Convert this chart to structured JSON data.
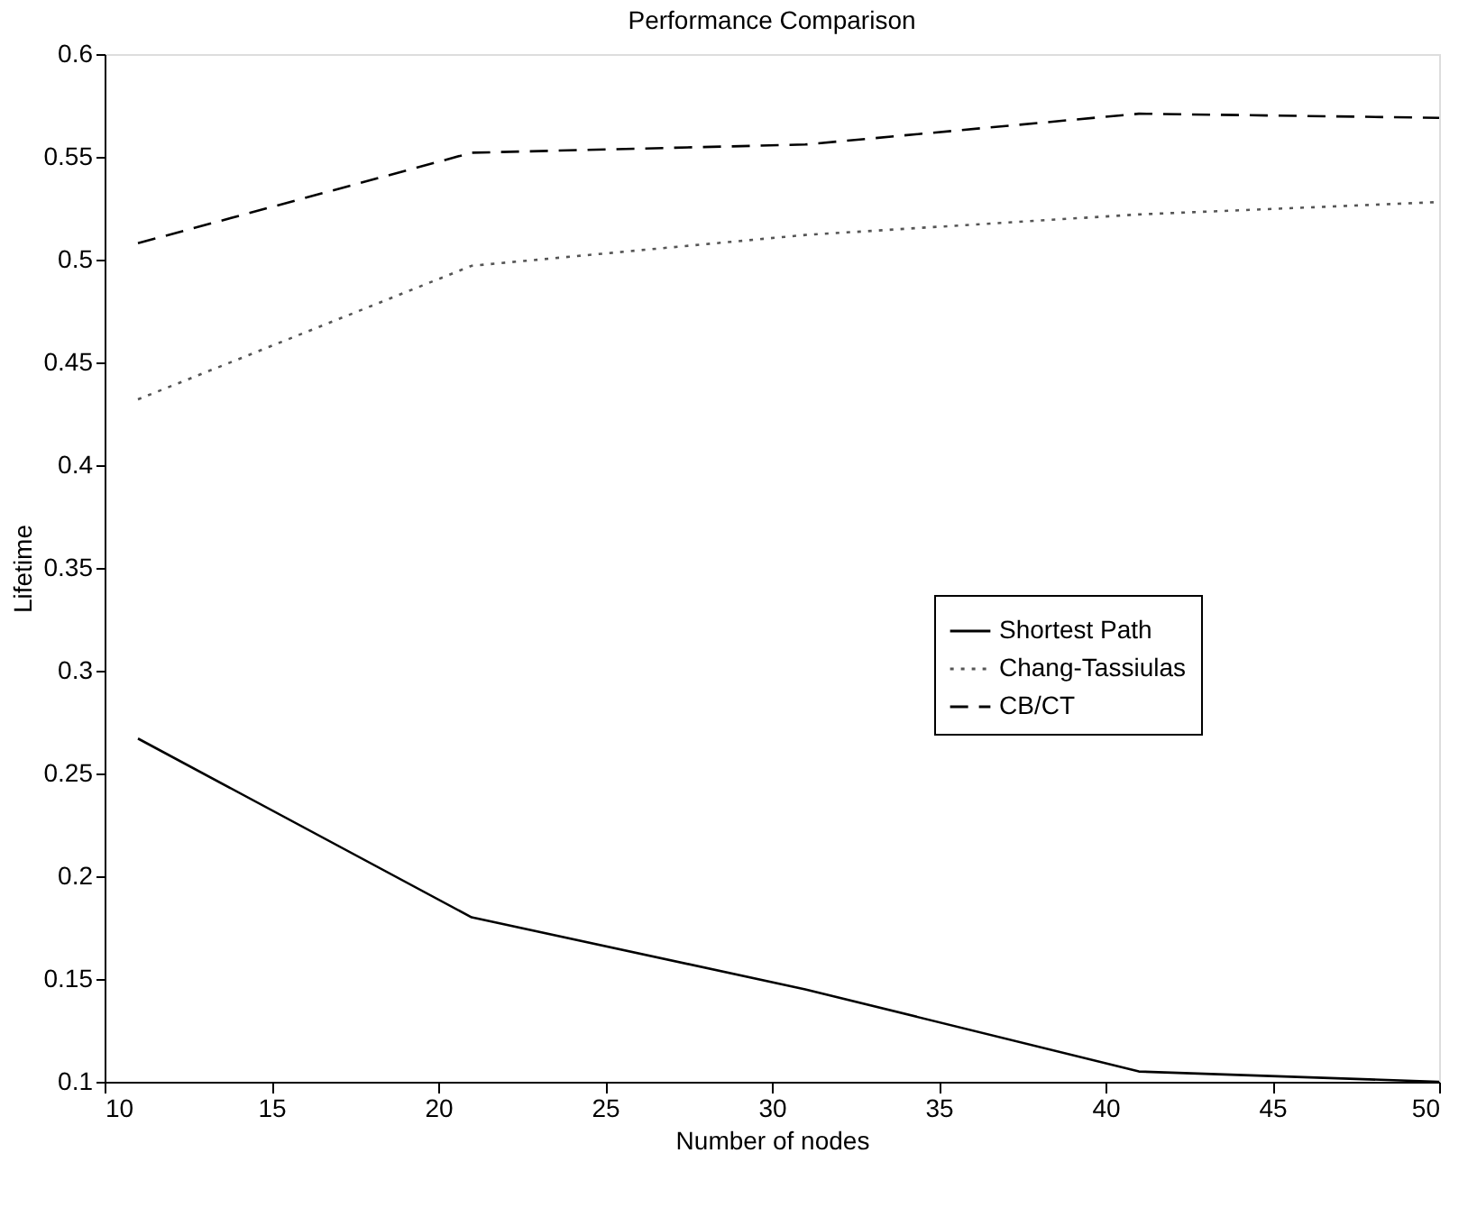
{
  "chart_data": {
    "type": "line",
    "title": "Performance Comparison",
    "xlabel": "Number of nodes",
    "ylabel": "Lifetime",
    "x": [
      11,
      21,
      31,
      41,
      50
    ],
    "series": [
      {
        "name": "Shortest Path",
        "color": "#000000",
        "line_style": "solid",
        "values": [
          0.267,
          0.18,
          0.145,
          0.105,
          0.1
        ]
      },
      {
        "name": "Chang-Tassiulas",
        "color": "#555555",
        "line_style": "dotted",
        "values": [
          0.432,
          0.497,
          0.512,
          0.522,
          0.528
        ]
      },
      {
        "name": "CB/CT",
        "color": "#000000",
        "line_style": "dashed",
        "values": [
          0.508,
          0.552,
          0.556,
          0.571,
          0.569
        ]
      }
    ],
    "xlim": [
      10,
      50
    ],
    "xticks": [
      10,
      15,
      20,
      25,
      30,
      35,
      40,
      45,
      50
    ],
    "ylim": [
      0.1,
      0.6
    ],
    "yticks": [
      0.1,
      0.15,
      0.2,
      0.25,
      0.3,
      0.35,
      0.4,
      0.45,
      0.5,
      0.55,
      0.6
    ],
    "grid": false,
    "legend": "right",
    "marker": "none"
  }
}
